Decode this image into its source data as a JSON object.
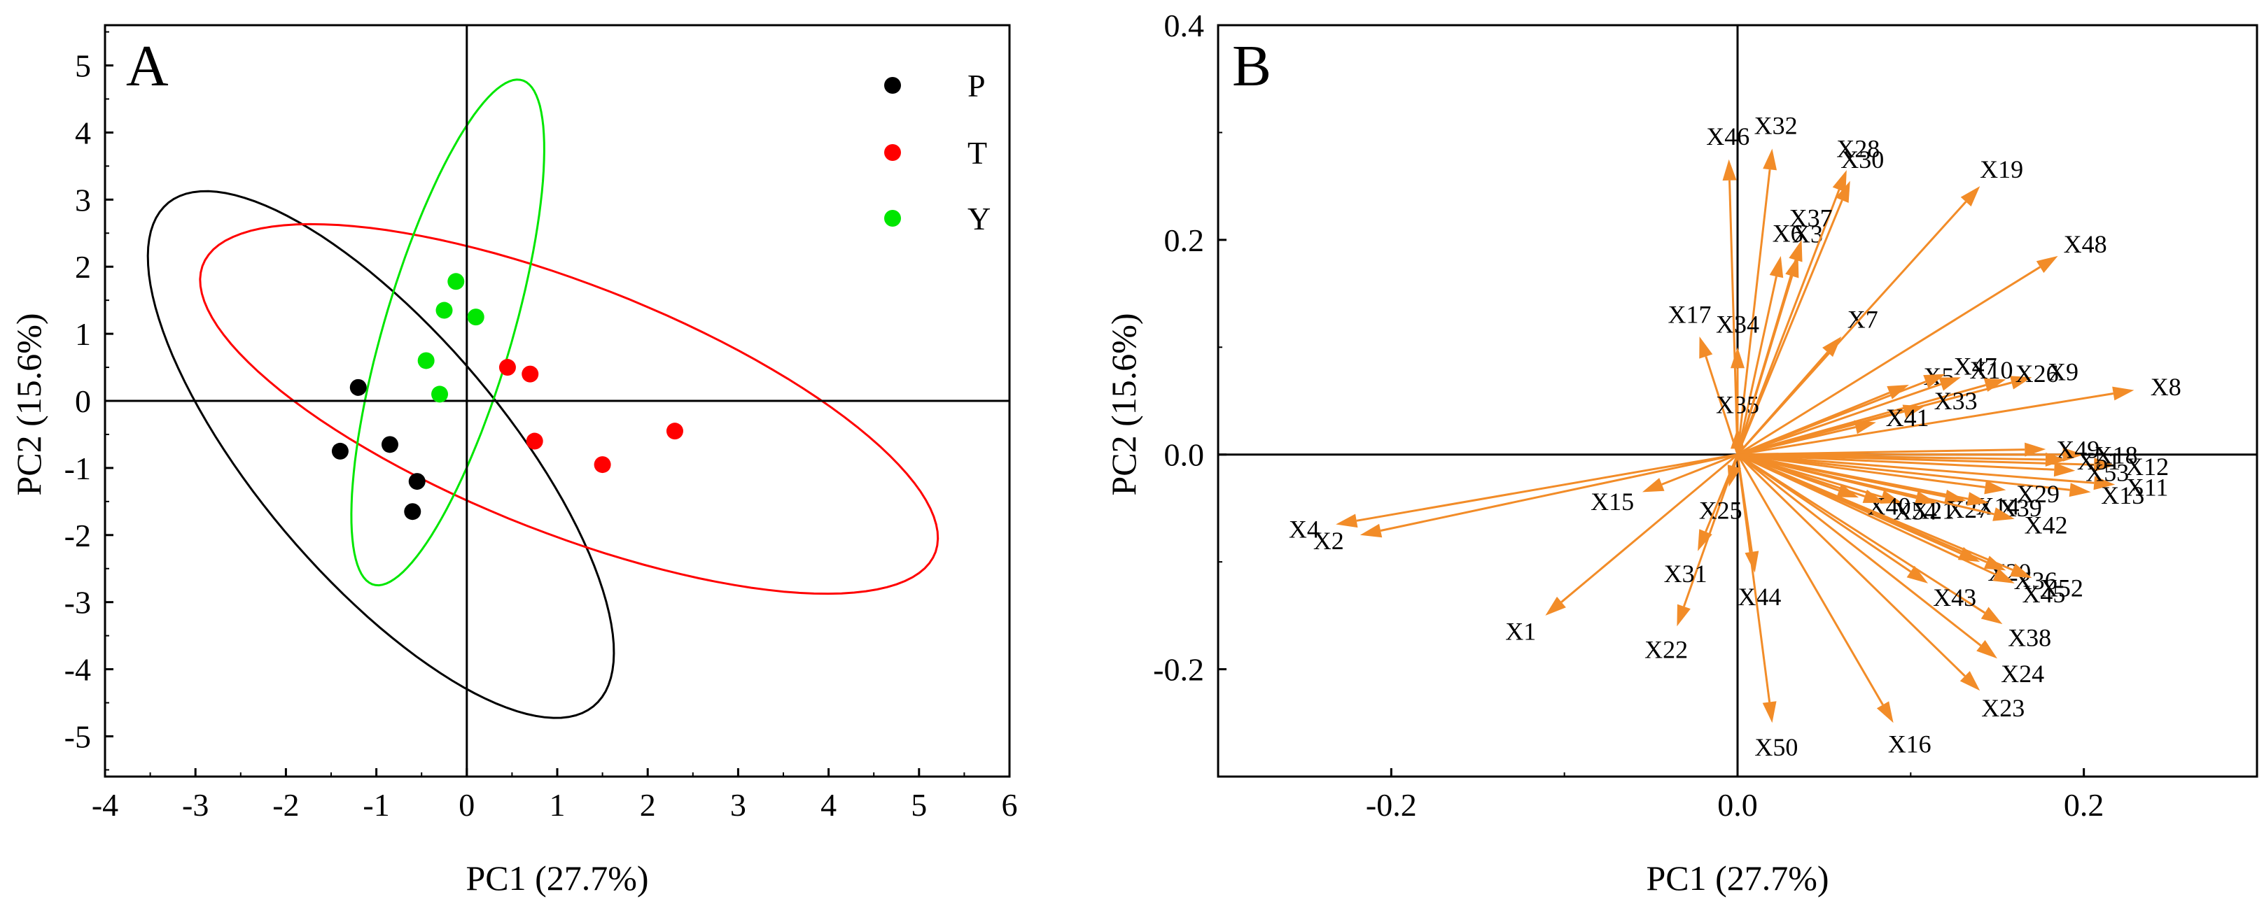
{
  "colors": {
    "P": "#000000",
    "T": "#ff0000",
    "Y": "#00e600",
    "arrow": "#f28c28",
    "axis": "#000000"
  },
  "chart_data": [
    {
      "type": "scatter",
      "panel": "A",
      "title": "",
      "xlabel": "PC1 (27.7%)",
      "ylabel": "PC2 (15.6%)",
      "xlim": [
        -4,
        6
      ],
      "ylim": [
        -5.6,
        5.6
      ],
      "xticks": [
        -4,
        -3,
        -2,
        -1,
        0,
        1,
        2,
        3,
        4,
        5,
        6
      ],
      "yticks": [
        -5,
        -4,
        -3,
        -2,
        -1,
        0,
        1,
        2,
        3,
        4,
        5
      ],
      "legend_position": "top-right",
      "series": [
        {
          "name": "P",
          "color": "#000000",
          "points": [
            [
              -1.2,
              0.2
            ],
            [
              -1.4,
              -0.75
            ],
            [
              -0.85,
              -0.65
            ],
            [
              -0.55,
              -1.2
            ],
            [
              -0.6,
              -1.65
            ]
          ],
          "ellipse": {
            "center": [
              -0.95,
              -0.8
            ],
            "semi_major": 4.45,
            "semi_minor": 1.5,
            "angle_deg": -60
          }
        },
        {
          "name": "T",
          "color": "#ff0000",
          "points": [
            [
              0.45,
              0.5
            ],
            [
              0.7,
              0.4
            ],
            [
              0.75,
              -0.6
            ],
            [
              1.5,
              -0.95
            ],
            [
              2.3,
              -0.45
            ]
          ],
          "ellipse": {
            "center": [
              1.13,
              -0.12
            ],
            "semi_major": 4.6,
            "semi_minor": 1.75,
            "angle_deg": -30
          }
        },
        {
          "name": "Y",
          "color": "#00e600",
          "points": [
            [
              -0.12,
              1.78
            ],
            [
              -0.25,
              1.35
            ],
            [
              0.1,
              1.25
            ],
            [
              -0.45,
              0.6
            ],
            [
              -0.3,
              0.1
            ]
          ],
          "ellipse": {
            "center": [
              -0.21,
              1.02
            ],
            "semi_major": 3.85,
            "semi_minor": 0.72,
            "angle_deg": 78
          }
        }
      ]
    },
    {
      "type": "scatter",
      "subtype": "loading-vectors",
      "panel": "B",
      "title": "",
      "xlabel": "PC1 (27.7%)",
      "ylabel": "PC2 (15.6%)",
      "xlim": [
        -0.3,
        0.3
      ],
      "ylim": [
        -0.3,
        0.4
      ],
      "xticks": [
        -0.2,
        0.0,
        0.2
      ],
      "xtick_labels": [
        "-0.2",
        "0.0",
        "0.2"
      ],
      "yticks": [
        -0.2,
        0.0,
        0.2,
        0.4
      ],
      "ytick_labels": [
        "-0.2",
        "0.0",
        "0.2",
        "0.4"
      ],
      "loadings": [
        {
          "name": "X1",
          "x": -0.111,
          "y": -0.15
        },
        {
          "name": "X2",
          "x": -0.218,
          "y": -0.075
        },
        {
          "name": "X3",
          "x": 0.035,
          "y": 0.185
        },
        {
          "name": "X4",
          "x": -0.232,
          "y": -0.065
        },
        {
          "name": "X5",
          "x": 0.099,
          "y": 0.065
        },
        {
          "name": "X6",
          "x": 0.025,
          "y": 0.185
        },
        {
          "name": "X7",
          "x": 0.06,
          "y": 0.11
        },
        {
          "name": "X8",
          "x": 0.229,
          "y": 0.06
        },
        {
          "name": "X9",
          "x": 0.17,
          "y": 0.072
        },
        {
          "name": "X10",
          "x": 0.129,
          "y": 0.072
        },
        {
          "name": "X11",
          "x": 0.218,
          "y": -0.028
        },
        {
          "name": "X12",
          "x": 0.218,
          "y": -0.01
        },
        {
          "name": "X13",
          "x": 0.204,
          "y": -0.035
        },
        {
          "name": "X14",
          "x": 0.132,
          "y": -0.043
        },
        {
          "name": "X15",
          "x": -0.055,
          "y": -0.035
        },
        {
          "name": "X16",
          "x": 0.09,
          "y": -0.25
        },
        {
          "name": "X17",
          "x": -0.022,
          "y": 0.11
        },
        {
          "name": "X18",
          "x": 0.2,
          "y": 0.0
        },
        {
          "name": "X19",
          "x": 0.14,
          "y": 0.25
        },
        {
          "name": "X20",
          "x": 0.14,
          "y": -0.1
        },
        {
          "name": "X21",
          "x": 0.095,
          "y": -0.045
        },
        {
          "name": "X22",
          "x": -0.035,
          "y": -0.16
        },
        {
          "name": "X23",
          "x": 0.14,
          "y": -0.22
        },
        {
          "name": "X24",
          "x": 0.15,
          "y": -0.19
        },
        {
          "name": "X25",
          "x": -0.005,
          "y": -0.03
        },
        {
          "name": "X26",
          "x": 0.155,
          "y": 0.07
        },
        {
          "name": "X27",
          "x": 0.115,
          "y": -0.045
        },
        {
          "name": "X28",
          "x": 0.063,
          "y": 0.265
        },
        {
          "name": "X29",
          "x": 0.155,
          "y": -0.033
        },
        {
          "name": "X30",
          "x": 0.065,
          "y": 0.255
        },
        {
          "name": "X31",
          "x": -0.023,
          "y": -0.09
        },
        {
          "name": "X32",
          "x": 0.02,
          "y": 0.285
        },
        {
          "name": "X33",
          "x": 0.108,
          "y": 0.045
        },
        {
          "name": "X34",
          "x": 0.0,
          "y": 0.1
        },
        {
          "name": "X35",
          "x": 0.0,
          "y": 0.025
        },
        {
          "name": "X36",
          "x": 0.155,
          "y": -0.108
        },
        {
          "name": "X37",
          "x": 0.037,
          "y": 0.2
        },
        {
          "name": "X38",
          "x": 0.153,
          "y": -0.158
        },
        {
          "name": "X39",
          "x": 0.145,
          "y": -0.045
        },
        {
          "name": "X40",
          "x": 0.07,
          "y": -0.04
        },
        {
          "name": "X41",
          "x": 0.08,
          "y": 0.03
        },
        {
          "name": "X42",
          "x": 0.16,
          "y": -0.06
        },
        {
          "name": "X43",
          "x": 0.11,
          "y": -0.12
        },
        {
          "name": "X44",
          "x": 0.01,
          "y": -0.11
        },
        {
          "name": "X45",
          "x": 0.16,
          "y": -0.12
        },
        {
          "name": "X46",
          "x": -0.005,
          "y": 0.275
        },
        {
          "name": "X47",
          "x": 0.12,
          "y": 0.075
        },
        {
          "name": "X48",
          "x": 0.185,
          "y": 0.185
        },
        {
          "name": "X49",
          "x": 0.178,
          "y": 0.005
        },
        {
          "name": "X50",
          "x": 0.02,
          "y": -0.25
        },
        {
          "name": "X51",
          "x": 0.19,
          "y": -0.005
        },
        {
          "name": "X52",
          "x": 0.17,
          "y": -0.115
        },
        {
          "name": "X53",
          "x": 0.195,
          "y": -0.015
        },
        {
          "name": "X54",
          "x": 0.085,
          "y": -0.045
        }
      ]
    }
  ]
}
